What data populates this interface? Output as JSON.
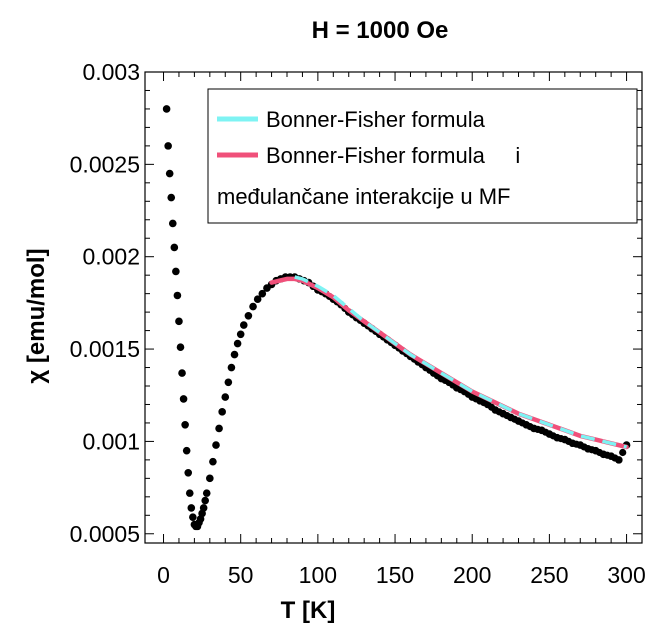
{
  "chart_data": {
    "type": "scatter",
    "title": "H = 1000 Oe",
    "xlabel": "T [K]",
    "ylabel": "χ [emu/mol]",
    "xlim": [
      -12,
      310
    ],
    "ylim": [
      0.00045,
      0.003
    ],
    "x_ticks": [
      0,
      50,
      100,
      150,
      200,
      250,
      300
    ],
    "x_tick_labels": [
      "0",
      "50",
      "100",
      "150",
      "200",
      "250",
      "300"
    ],
    "y_ticks": [
      0.0005,
      0.001,
      0.0015,
      0.002,
      0.0025,
      0.003
    ],
    "y_tick_labels": [
      "0.0005",
      "0.001",
      "0.0015",
      "0.002",
      "0.0025",
      "0.003"
    ],
    "grid": false,
    "legend_position": "top-right",
    "legend": [
      {
        "label": "Bonner-Fisher formula",
        "color": "#7ef3f3"
      },
      {
        "label": "Bonner-Fisher formula     i",
        "label_line2": "međulančane interakcije u MF",
        "color": "#f0507a"
      }
    ],
    "series": [
      {
        "kind": "points",
        "color": "#000000",
        "x": [
          2,
          3,
          4,
          5,
          6,
          7,
          8,
          9,
          10,
          11,
          12,
          13,
          14,
          15,
          16,
          17,
          18,
          19,
          20,
          21,
          22,
          23,
          24,
          25,
          26,
          27,
          28,
          30,
          32,
          34,
          36,
          38,
          40,
          42,
          44,
          46,
          48,
          50,
          52,
          55,
          58,
          61,
          64,
          67,
          70,
          73,
          76,
          79,
          82,
          85,
          88,
          91,
          94,
          97,
          100,
          105,
          110,
          115,
          120,
          125,
          130,
          135,
          140,
          145,
          150,
          155,
          160,
          165,
          170,
          175,
          180,
          185,
          190,
          195,
          200,
          205,
          210,
          215,
          220,
          225,
          230,
          235,
          240,
          245,
          250,
          255,
          260,
          265,
          270,
          275,
          280,
          285,
          290,
          295,
          300
        ],
        "y": [
          0.0028,
          0.0026,
          0.00245,
          0.00232,
          0.00218,
          0.00205,
          0.00192,
          0.00179,
          0.00165,
          0.00151,
          0.00137,
          0.00123,
          0.00109,
          0.00095,
          0.00083,
          0.00072,
          0.00064,
          0.00059,
          0.00055,
          0.00054,
          0.00054,
          0.00056,
          0.00058,
          0.00061,
          0.00064,
          0.00068,
          0.00072,
          0.0008,
          0.00089,
          0.00098,
          0.00107,
          0.00116,
          0.00124,
          0.00132,
          0.0014,
          0.00147,
          0.00153,
          0.00158,
          0.00163,
          0.00168,
          0.00173,
          0.00177,
          0.0018,
          0.00183,
          0.00185,
          0.00187,
          0.00188,
          0.00189,
          0.00189,
          0.00189,
          0.00188,
          0.00187,
          0.00186,
          0.00184,
          0.00182,
          0.0018,
          0.00177,
          0.00174,
          0.0017,
          0.00167,
          0.00164,
          0.00161,
          0.00158,
          0.00155,
          0.00152,
          0.00149,
          0.00146,
          0.00143,
          0.0014,
          0.00137,
          0.00134,
          0.00132,
          0.00129,
          0.00127,
          0.00124,
          0.00122,
          0.0012,
          0.00117,
          0.00115,
          0.00113,
          0.00111,
          0.00109,
          0.00107,
          0.00106,
          0.00104,
          0.00102,
          0.00101,
          0.00099,
          0.00098,
          0.00096,
          0.00095,
          0.00093,
          0.00092,
          0.0009,
          0.00098
        ]
      },
      {
        "kind": "line",
        "name": "Bonner-Fisher formula     i međulančane interakcije u MF",
        "color": "#f0507a",
        "x": [
          70,
          75,
          80,
          85,
          90,
          95,
          100,
          110,
          120,
          130,
          140,
          150,
          160,
          170,
          180,
          190,
          200,
          210,
          220,
          230,
          240,
          250,
          260,
          270,
          280,
          290,
          300
        ],
        "y": [
          0.00186,
          0.00187,
          0.00188,
          0.00188,
          0.00187,
          0.00185,
          0.00183,
          0.00178,
          0.00171,
          0.00165,
          0.00159,
          0.00153,
          0.00147,
          0.00142,
          0.00137,
          0.00132,
          0.00127,
          0.00123,
          0.00119,
          0.00115,
          0.00112,
          0.00109,
          0.00106,
          0.00103,
          0.00101,
          0.00099,
          0.00097
        ]
      },
      {
        "kind": "dashed-line",
        "name": "Bonner-Fisher formula",
        "color": "#7ef3f3",
        "x": [
          85,
          90,
          95,
          100,
          110,
          120,
          130,
          140,
          150,
          160,
          170,
          180,
          190,
          200,
          210,
          220,
          230,
          240,
          250,
          260,
          270,
          280,
          290,
          300
        ],
        "y": [
          0.00189,
          0.00188,
          0.00186,
          0.00184,
          0.00179,
          0.00172,
          0.00165,
          0.00159,
          0.00153,
          0.00147,
          0.00142,
          0.00137,
          0.00132,
          0.00127,
          0.00123,
          0.00119,
          0.00115,
          0.00112,
          0.00109,
          0.00106,
          0.00103,
          0.00101,
          0.00099,
          0.00097
        ]
      }
    ]
  }
}
